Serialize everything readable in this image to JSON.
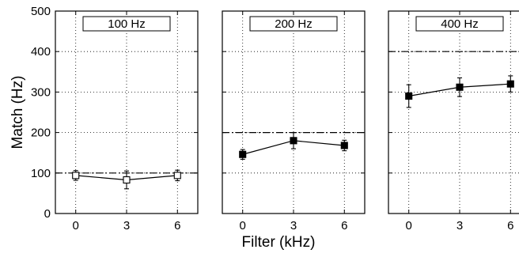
{
  "chart_data": {
    "type": "line",
    "xlabel": "Filter (kHz)",
    "ylabel": "Match (Hz)",
    "ylim": [
      0,
      500
    ],
    "yticks": [
      0,
      100,
      200,
      300,
      400,
      500
    ],
    "xlim": [
      -1.2,
      7.2
    ],
    "xticks": [
      0,
      3,
      6
    ],
    "grid": true,
    "panels": [
      {
        "title": "100 Hz",
        "reference_line": 100,
        "marker": "open-square",
        "series": [
          {
            "x": [
              0,
              3,
              6
            ],
            "y": [
              94,
              83,
              94
            ],
            "error": [
              12,
              22,
              13
            ]
          }
        ]
      },
      {
        "title": "200 Hz",
        "reference_line": 200,
        "marker": "filled-square",
        "series": [
          {
            "x": [
              0,
              3,
              6
            ],
            "y": [
              146,
              180,
              168
            ],
            "error": [
              12,
              20,
              13
            ]
          }
        ]
      },
      {
        "title": "400 Hz",
        "reference_line": 400,
        "marker": "filled-square",
        "series": [
          {
            "x": [
              0,
              3,
              6
            ],
            "y": [
              290,
              312,
              320
            ],
            "error": [
              28,
              23,
              20
            ]
          }
        ]
      }
    ]
  }
}
